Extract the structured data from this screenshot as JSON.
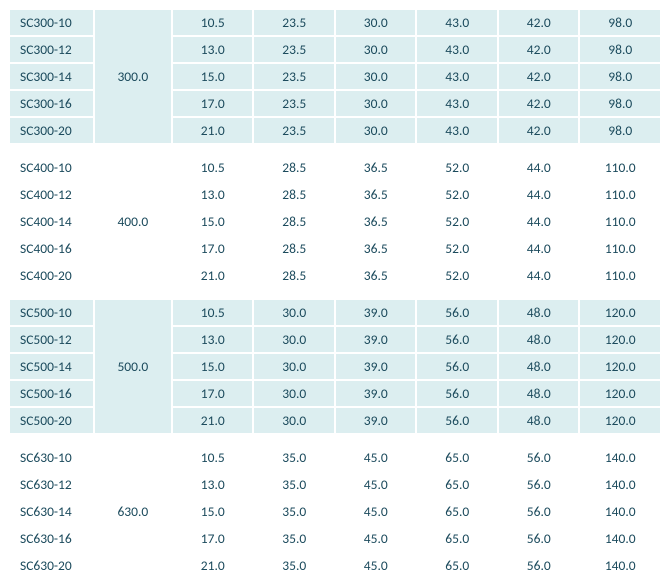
{
  "colors": {
    "text": "#1b4a5c",
    "tint": "#dceef0",
    "background": "#ffffff"
  },
  "column_count": 8,
  "groups": [
    {
      "tinted": true,
      "group_value": "300.0",
      "rows": [
        {
          "label": "SC300-10",
          "cells": [
            "10.5",
            "23.5",
            "30.0",
            "43.0",
            "42.0",
            "98.0"
          ]
        },
        {
          "label": "SC300-12",
          "cells": [
            "13.0",
            "23.5",
            "30.0",
            "43.0",
            "42.0",
            "98.0"
          ]
        },
        {
          "label": "SC300-14",
          "cells": [
            "15.0",
            "23.5",
            "30.0",
            "43.0",
            "42.0",
            "98.0"
          ]
        },
        {
          "label": "SC300-16",
          "cells": [
            "17.0",
            "23.5",
            "30.0",
            "43.0",
            "42.0",
            "98.0"
          ]
        },
        {
          "label": "SC300-20",
          "cells": [
            "21.0",
            "23.5",
            "30.0",
            "43.0",
            "42.0",
            "98.0"
          ]
        }
      ]
    },
    {
      "tinted": false,
      "group_value": "400.0",
      "rows": [
        {
          "label": "SC400-10",
          "cells": [
            "10.5",
            "28.5",
            "36.5",
            "52.0",
            "44.0",
            "110.0"
          ]
        },
        {
          "label": "SC400-12",
          "cells": [
            "13.0",
            "28.5",
            "36.5",
            "52.0",
            "44.0",
            "110.0"
          ]
        },
        {
          "label": "SC400-14",
          "cells": [
            "15.0",
            "28.5",
            "36.5",
            "52.0",
            "44.0",
            "110.0"
          ]
        },
        {
          "label": "SC400-16",
          "cells": [
            "17.0",
            "28.5",
            "36.5",
            "52.0",
            "44.0",
            "110.0"
          ]
        },
        {
          "label": "SC400-20",
          "cells": [
            "21.0",
            "28.5",
            "36.5",
            "52.0",
            "44.0",
            "110.0"
          ]
        }
      ]
    },
    {
      "tinted": true,
      "group_value": "500.0",
      "rows": [
        {
          "label": "SC500-10",
          "cells": [
            "10.5",
            "30.0",
            "39.0",
            "56.0",
            "48.0",
            "120.0"
          ]
        },
        {
          "label": "SC500-12",
          "cells": [
            "13.0",
            "30.0",
            "39.0",
            "56.0",
            "48.0",
            "120.0"
          ]
        },
        {
          "label": "SC500-14",
          "cells": [
            "15.0",
            "30.0",
            "39.0",
            "56.0",
            "48.0",
            "120.0"
          ]
        },
        {
          "label": "SC500-16",
          "cells": [
            "17.0",
            "30.0",
            "39.0",
            "56.0",
            "48.0",
            "120.0"
          ]
        },
        {
          "label": "SC500-20",
          "cells": [
            "21.0",
            "30.0",
            "39.0",
            "56.0",
            "48.0",
            "120.0"
          ]
        }
      ]
    },
    {
      "tinted": false,
      "group_value": "630.0",
      "rows": [
        {
          "label": "SC630-10",
          "cells": [
            "10.5",
            "35.0",
            "45.0",
            "65.0",
            "56.0",
            "140.0"
          ]
        },
        {
          "label": "SC630-12",
          "cells": [
            "13.0",
            "35.0",
            "45.0",
            "65.0",
            "56.0",
            "140.0"
          ]
        },
        {
          "label": "SC630-14",
          "cells": [
            "15.0",
            "35.0",
            "45.0",
            "65.0",
            "56.0",
            "140.0"
          ]
        },
        {
          "label": "SC630-16",
          "cells": [
            "17.0",
            "35.0",
            "45.0",
            "65.0",
            "56.0",
            "140.0"
          ]
        },
        {
          "label": "SC630-20",
          "cells": [
            "21.0",
            "35.0",
            "45.0",
            "65.0",
            "56.0",
            "140.0"
          ]
        }
      ]
    }
  ]
}
